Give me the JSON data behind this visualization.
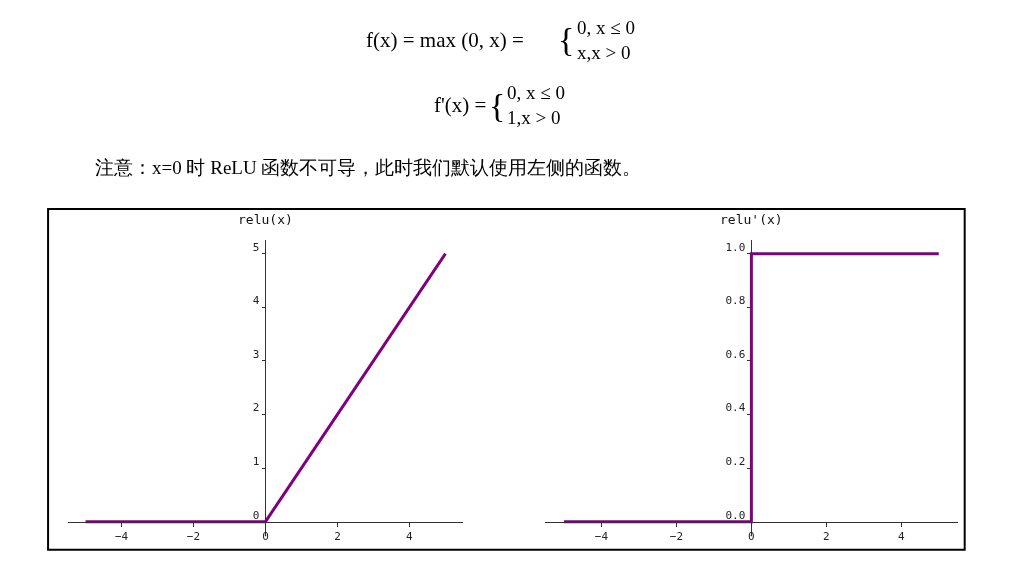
{
  "chart_data": [
    {
      "type": "line",
      "title": "relu(x)",
      "x": [
        -5,
        0,
        5
      ],
      "series": [
        {
          "color": "#800080",
          "values": [
            0,
            0,
            5
          ]
        }
      ],
      "xlim": [
        -5.5,
        5.5
      ],
      "ylim": [
        -0.25,
        5.25
      ],
      "xticks": [
        -4,
        -2,
        0,
        2,
        4
      ],
      "yticks": [
        0,
        1,
        2,
        3,
        4,
        5
      ],
      "grid": false,
      "annotations": [
        "f(x) = max (0, x) =",
        "{",
        "0, x ≤ 0\nx,x > 0",
        "f'(x) =",
        "{",
        "0, x ≤ 0\n1,x > 0",
        "注意：x=0 时 ReLU 函数不可导，此时我们默认使用左侧的函数。"
      ]
    },
    {
      "type": "step",
      "title": "relu'(x)",
      "x": [
        -5,
        0,
        5
      ],
      "series": [
        {
          "color": "#800080",
          "values": [
            0,
            1,
            1
          ]
        }
      ],
      "xlim": [
        -5.5,
        5.5
      ],
      "ylim": [
        -0.05,
        1.05
      ],
      "xticks": [
        -4,
        -2,
        0,
        2,
        4
      ],
      "yticks": [
        {
          "value": 0,
          "label": "0.0"
        },
        {
          "value": 0.2,
          "label": "0.2"
        },
        {
          "value": 0.4,
          "label": "0.4"
        },
        {
          "value": 0.6,
          "label": "0.6"
        },
        {
          "value": 0.8,
          "label": "0.8"
        },
        {
          "value": 1,
          "label": "1.0"
        }
      ],
      "grid": false
    }
  ]
}
